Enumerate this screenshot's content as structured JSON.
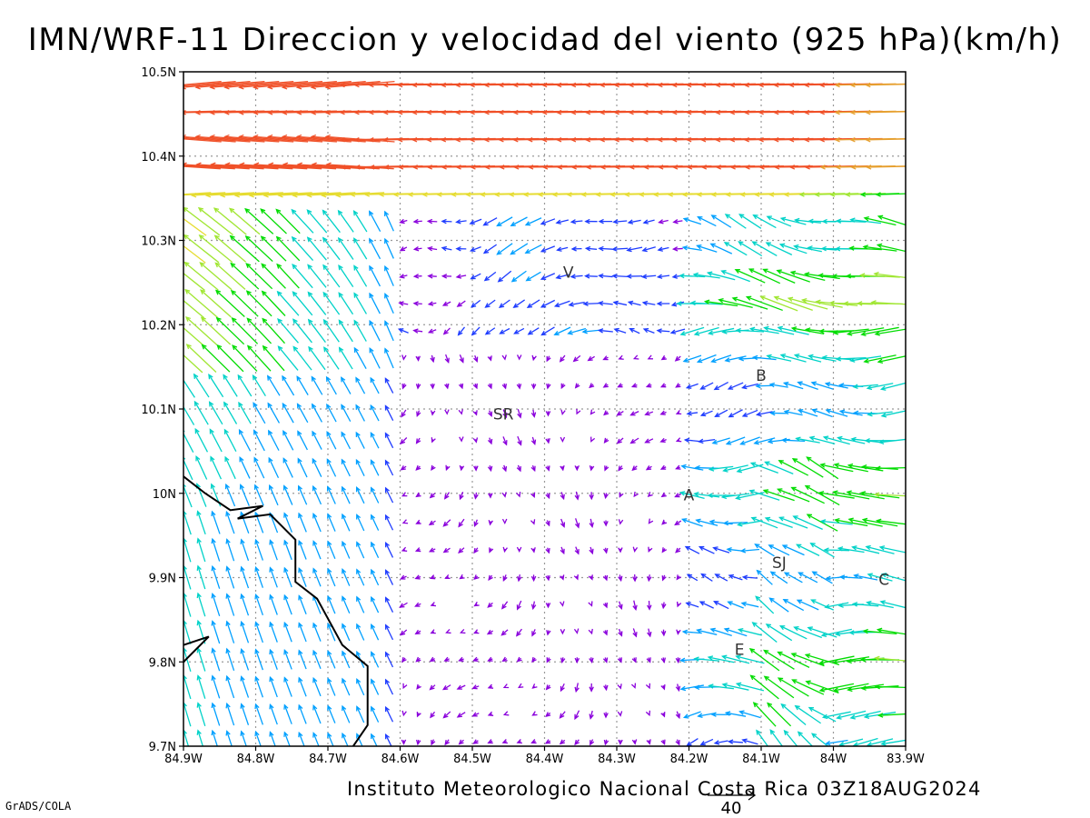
{
  "title": "IMN/WRF-11 Direccion y velocidad del viento (925 hPa)(km/h)",
  "footer": "Instituto Meteorologico Nacional Costa Rica 03Z18AUG2024",
  "credit": "GrADS/COLA",
  "legend": {
    "reference_value": "40",
    "reference_arrow_color": "#000000"
  },
  "map_data": {
    "type": "vector-field",
    "lon_range": [
      -84.9,
      -83.9
    ],
    "lat_range": [
      9.7,
      10.5
    ],
    "grid": true,
    "lon_ticks": [
      {
        "value": -84.9,
        "label": "84.9W"
      },
      {
        "value": -84.8,
        "label": "84.8W"
      },
      {
        "value": -84.7,
        "label": "84.7W"
      },
      {
        "value": -84.6,
        "label": "84.6W"
      },
      {
        "value": -84.5,
        "label": "84.5W"
      },
      {
        "value": -84.4,
        "label": "84.4W"
      },
      {
        "value": -84.3,
        "label": "84.3W"
      },
      {
        "value": -84.2,
        "label": "84.2W"
      },
      {
        "value": -84.1,
        "label": "84.1W"
      },
      {
        "value": -84.0,
        "label": "84W"
      },
      {
        "value": -83.9,
        "label": "83.9W"
      }
    ],
    "lat_ticks": [
      {
        "value": 9.7,
        "label": "9.7N"
      },
      {
        "value": 9.8,
        "label": "9.8N"
      },
      {
        "value": 9.9,
        "label": "9.9N"
      },
      {
        "value": 10.0,
        "label": "10N"
      },
      {
        "value": 10.1,
        "label": "10.1N"
      },
      {
        "value": 10.2,
        "label": "10.2N"
      },
      {
        "value": 10.3,
        "label": "10.3N"
      },
      {
        "value": 10.4,
        "label": "10.4N"
      },
      {
        "value": 10.5,
        "label": "10.5N"
      }
    ],
    "cities": [
      {
        "label": "V",
        "lon": -84.367,
        "lat": 10.262
      },
      {
        "label": "B",
        "lon": -84.1,
        "lat": 10.14
      },
      {
        "label": "SR",
        "lon": -84.457,
        "lat": 10.094
      },
      {
        "label": "A",
        "lon": -84.2,
        "lat": 9.998
      },
      {
        "label": "SJ",
        "lon": -84.075,
        "lat": 9.918
      },
      {
        "label": "C",
        "lon": -83.93,
        "lat": 9.898
      },
      {
        "label": "E",
        "lon": -84.13,
        "lat": 9.815
      }
    ],
    "coastline": [
      [
        [
          -84.9,
          10.02
        ],
        [
          -84.87,
          10.0
        ],
        [
          -84.835,
          9.98
        ],
        [
          -84.79,
          9.985
        ],
        [
          -84.825,
          9.97
        ],
        [
          -84.78,
          9.975
        ],
        [
          -84.745,
          9.945
        ],
        [
          -84.745,
          9.895
        ],
        [
          -84.715,
          9.875
        ],
        [
          -84.68,
          9.82
        ],
        [
          -84.645,
          9.795
        ],
        [
          -84.645,
          9.725
        ],
        [
          -84.665,
          9.7
        ]
      ],
      [
        [
          -84.9,
          9.82
        ],
        [
          -84.865,
          9.83
        ],
        [
          -84.9,
          9.8
        ]
      ]
    ],
    "vector_grid": {
      "lon_step": 0.02,
      "lat_step": 0.0325
    },
    "speed_colors": [
      {
        "min_kmh": 0,
        "color": "#8a00dc"
      },
      {
        "min_kmh": 8,
        "color": "#1e3cff"
      },
      {
        "min_kmh": 14,
        "color": "#00a0ff"
      },
      {
        "min_kmh": 20,
        "color": "#00d2c8"
      },
      {
        "min_kmh": 27,
        "color": "#00dc00"
      },
      {
        "min_kmh": 33,
        "color": "#a0e632"
      },
      {
        "min_kmh": 39,
        "color": "#e6dc32"
      },
      {
        "min_kmh": 45,
        "color": "#e6a030"
      },
      {
        "min_kmh": 52,
        "color": "#f05028"
      }
    ]
  }
}
